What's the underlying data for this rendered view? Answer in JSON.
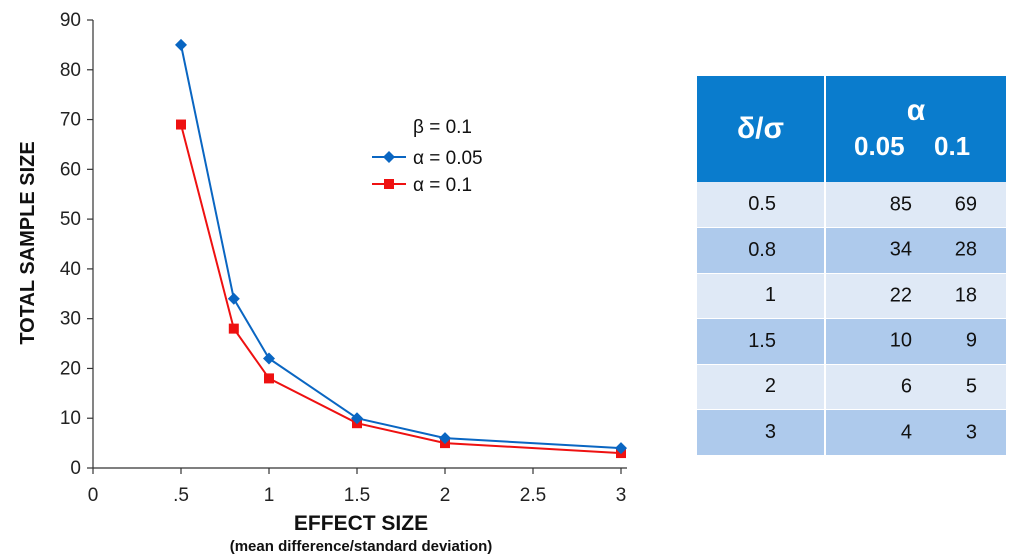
{
  "chart_data": {
    "type": "line",
    "title": "",
    "xlabel": "EFFECT SIZE",
    "xlabel_sub": "(mean difference/standard deviation)",
    "ylabel": "TOTAL SAMPLE SIZE",
    "xlim": [
      0,
      3
    ],
    "ylim": [
      0,
      90
    ],
    "x_ticks": [
      0,
      0.5,
      1,
      1.5,
      2,
      2.5,
      3
    ],
    "x_tick_labels": [
      "0",
      ".5",
      "1",
      "1.5",
      "2",
      "2.5",
      "3"
    ],
    "y_ticks": [
      0,
      10,
      20,
      30,
      40,
      50,
      60,
      70,
      80,
      90
    ],
    "y_tick_labels": [
      "0",
      "10",
      "20",
      "30",
      "40",
      "50",
      "60",
      "70",
      "80",
      "90"
    ],
    "grid": false,
    "legend_title": "β = 0.1",
    "legend_position": "top-center",
    "x": [
      0.5,
      0.8,
      1,
      1.5,
      2,
      3
    ],
    "series": [
      {
        "name": "α = 0.05",
        "values": [
          85,
          34,
          22,
          10,
          6,
          4
        ],
        "color": "#0a66c2",
        "marker": "diamond"
      },
      {
        "name": "α = 0.1",
        "values": [
          69,
          28,
          18,
          9,
          5,
          3
        ],
        "color": "#ee1111",
        "marker": "square"
      }
    ]
  },
  "table": {
    "header_col1": "δ/σ",
    "header_alpha": "α",
    "header_sub1": "0.05",
    "header_sub2": "0.1",
    "header_bg": "#0a7ccd",
    "rows": [
      {
        "delta": "0.5",
        "a005": "85",
        "a01": "69"
      },
      {
        "delta": "0.8",
        "a005": "34",
        "a01": "28"
      },
      {
        "delta": "1",
        "a005": "22",
        "a01": "18"
      },
      {
        "delta": "1.5",
        "a005": "10",
        "a01": "9"
      },
      {
        "delta": "2",
        "a005": "6",
        "a01": "5"
      },
      {
        "delta": "3",
        "a005": "4",
        "a01": "3"
      }
    ]
  }
}
